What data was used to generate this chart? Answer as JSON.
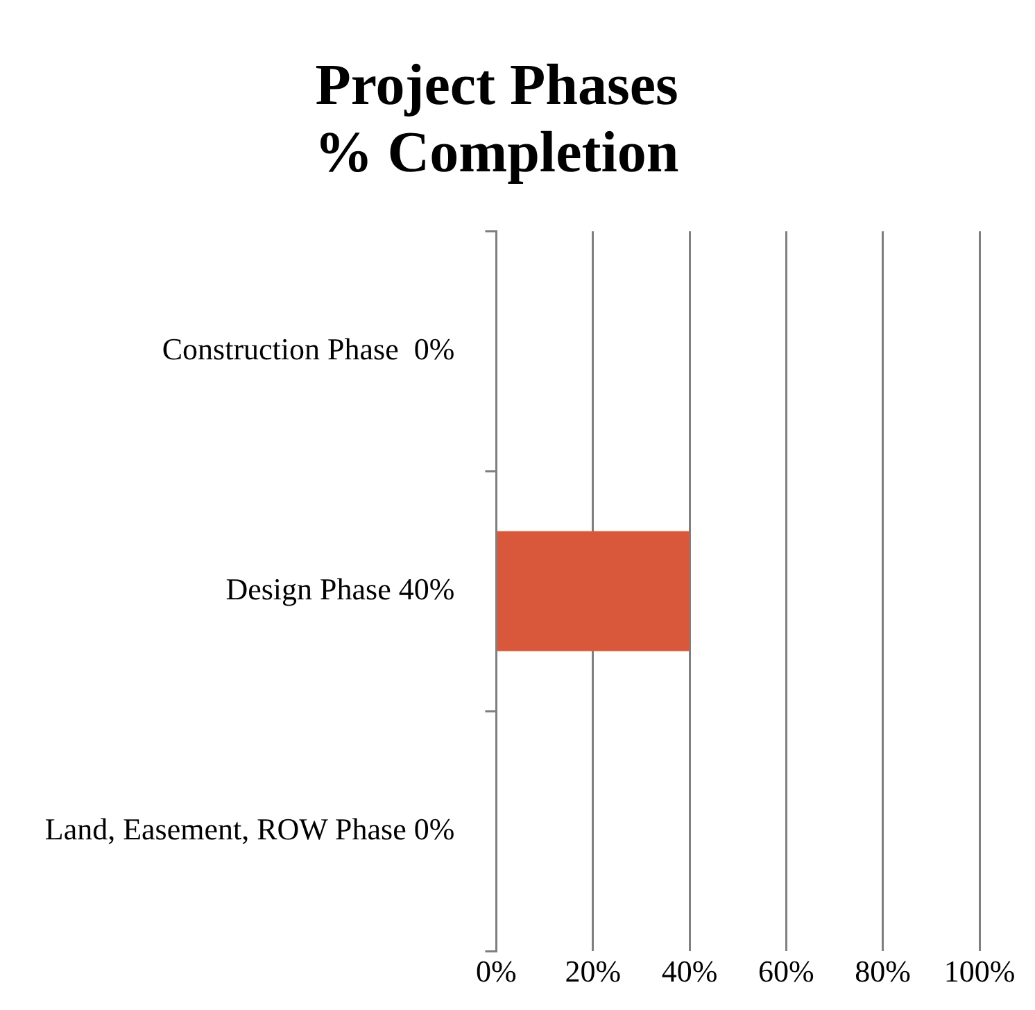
{
  "chart_data": {
    "type": "bar",
    "orientation": "horizontal",
    "title": "Project Phases\n% Completion",
    "categories": [
      "Construction Phase  0%",
      "Design Phase 40%",
      "Land, Easement, ROW Phase 0%"
    ],
    "values": [
      0,
      40,
      0
    ],
    "color": "#d9583b",
    "xlim": [
      0,
      100
    ],
    "xticks": [
      {
        "value": 0,
        "label": "0%"
      },
      {
        "value": 20,
        "label": "20%"
      },
      {
        "value": 40,
        "label": "40%"
      },
      {
        "value": 60,
        "label": "60%"
      },
      {
        "value": 80,
        "label": "80%"
      },
      {
        "value": 100,
        "label": "100%"
      }
    ],
    "grid": "x",
    "legend": false
  }
}
